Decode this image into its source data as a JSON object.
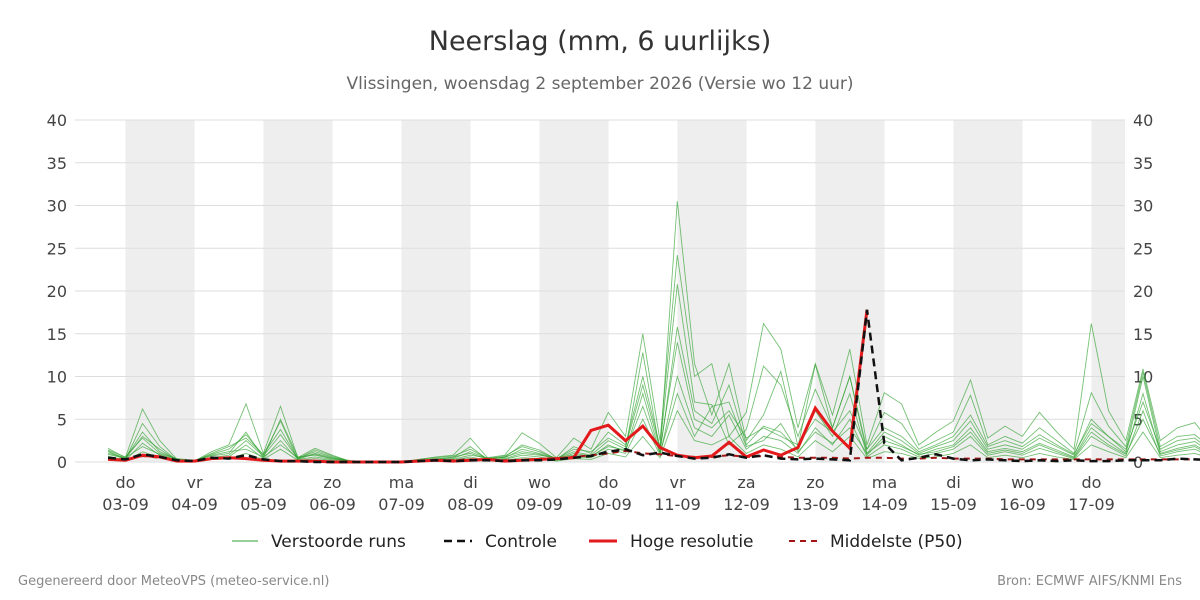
{
  "title": "Neerslag (mm, 6 uurlijks)",
  "subtitle": "Vlissingen, woensdag  2 september 2026 (Versie wo 12 uur)",
  "footer_left": "Gegenereerd door MeteoVPS (meteo-service.nl)",
  "footer_right": "Bron: ECMWF AIFS/KNMI Ens",
  "colors": {
    "ensemble": "#2ca02c",
    "control": "#111111",
    "high_res": "#e31a1c",
    "median": "#a31515",
    "weekend_band": "#eeeeee",
    "grid": "#dddddd"
  },
  "chart_data": {
    "type": "line",
    "x_unit": "6-hour steps from 2026-09-02 18:00",
    "x_labels": [
      {
        "day": "do",
        "date": "03-09"
      },
      {
        "day": "vr",
        "date": "04-09"
      },
      {
        "day": "za",
        "date": "05-09"
      },
      {
        "day": "zo",
        "date": "06-09"
      },
      {
        "day": "ma",
        "date": "07-09"
      },
      {
        "day": "di",
        "date": "08-09"
      },
      {
        "day": "wo",
        "date": "09-09"
      },
      {
        "day": "do",
        "date": "10-09"
      },
      {
        "day": "vr",
        "date": "11-09"
      },
      {
        "day": "za",
        "date": "12-09"
      },
      {
        "day": "zo",
        "date": "13-09"
      },
      {
        "day": "ma",
        "date": "14-09"
      },
      {
        "day": "di",
        "date": "15-09"
      },
      {
        "day": "wo",
        "date": "16-09"
      },
      {
        "day": "do",
        "date": "17-09"
      }
    ],
    "yticks": [
      0,
      5,
      10,
      15,
      20,
      25,
      30,
      35,
      40
    ],
    "ylim": [
      0,
      40
    ],
    "grid": true,
    "legend_position": "bottom",
    "legend": [
      {
        "key": "ensemble",
        "label": "Verstoorde runs",
        "style": "thin"
      },
      {
        "key": "control",
        "label": "Controle",
        "style": "dashed"
      },
      {
        "key": "high_res",
        "label": "Hoge resolutie",
        "style": "solid"
      },
      {
        "key": "median",
        "label": "Middelste (P50)",
        "style": "dashed"
      }
    ],
    "high_res": {
      "name": "Hoge resolutie",
      "values": [
        0.3,
        0.2,
        0.8,
        0.6,
        0.1,
        0.1,
        0.4,
        0.5,
        0.4,
        0.2,
        0.1,
        0.1,
        0.1,
        0,
        0,
        0,
        0,
        0,
        0.1,
        0.2,
        0.1,
        0.2,
        0.3,
        0.1,
        0.2,
        0.3,
        0.4,
        0.5,
        3.7,
        4.3,
        2.5,
        4.2,
        1.7,
        0.8,
        0.5,
        0.7,
        2.3,
        0.6,
        1.4,
        0.8,
        1.7,
        6.3,
        3.6,
        1.6,
        17.8
      ]
    },
    "control": {
      "name": "Controle",
      "values": [
        0.5,
        0.3,
        0.9,
        0.6,
        0.2,
        0.1,
        0.5,
        0.4,
        0.8,
        0.3,
        0.1,
        0.1,
        0,
        0,
        0,
        0,
        0,
        0,
        0.1,
        0.2,
        0.1,
        0.2,
        0.2,
        0.1,
        0.2,
        0.2,
        0.3,
        0.5,
        0.7,
        1.2,
        1.5,
        0.8,
        1.1,
        0.7,
        0.4,
        0.5,
        0.9,
        0.5,
        0.8,
        0.4,
        0.3,
        0.4,
        0.3,
        0.2,
        17.8,
        2.2,
        0.2,
        0.5,
        0.9,
        0.4,
        0.2,
        0.3,
        0.2,
        0.1,
        0.2,
        0.1,
        0.2,
        0.1,
        0.1,
        0.2,
        0.2,
        0.2,
        0.4,
        0.3,
        0.2,
        0.3,
        0.9
      ]
    },
    "median": {
      "name": "Middelste (P50)",
      "values": [
        0.4,
        0.3,
        0.7,
        0.5,
        0.2,
        0.1,
        0.4,
        0.5,
        0.4,
        0.2,
        0.1,
        0.1,
        0,
        0,
        0,
        0,
        0,
        0,
        0.1,
        0.2,
        0.2,
        0.3,
        0.3,
        0.2,
        0.2,
        0.3,
        0.4,
        0.6,
        0.8,
        1.0,
        1.3,
        1.0,
        0.9,
        0.7,
        0.6,
        0.6,
        0.8,
        0.6,
        0.7,
        0.6,
        0.5,
        0.5,
        0.5,
        0.4,
        0.5,
        0.5,
        0.4,
        0.4,
        0.5,
        0.4,
        0.4,
        0.4,
        0.3,
        0.3,
        0.3,
        0.3,
        0.3,
        0.3,
        0.3,
        0.3,
        0.3,
        0.3,
        0.3,
        0.3,
        0.3,
        0.3,
        0.3
      ]
    },
    "ensemble": [
      [
        1.6,
        0.5,
        6.2,
        2.5,
        0.3,
        0.1,
        1.2,
        2.0,
        6.8,
        1.0,
        6.5,
        0.5,
        1.6,
        0.8,
        0.1,
        0,
        0,
        0,
        0.3,
        0.6,
        0.8,
        2.8,
        0.5,
        0.8,
        3.4,
        2.2,
        0.5,
        2.8,
        1.5,
        5.8,
        3.0,
        15.0,
        2.5,
        24.2,
        10.0,
        11.5,
        3.0,
        5.8,
        16.2,
        13.2,
        4.0,
        11.5,
        5.5,
        13.2,
        2.0,
        8.1,
        6.8,
        2.0,
        3.5,
        4.8,
        9.6,
        2.8,
        4.2,
        3.0,
        5.8,
        3.5,
        1.5,
        16.2,
        6.0,
        2.5,
        10.9,
        2.5,
        4.0,
        4.6,
        2.0,
        6.8,
        2.5,
        8.9,
        2.0,
        0.8,
        14.6,
        2.5,
        1.5,
        8.6,
        3.5,
        1.0,
        6.0,
        7.0,
        8.2,
        2.0,
        1.2,
        17.0,
        3.5,
        7.8,
        8.8
      ],
      [
        1.2,
        0.3,
        4.5,
        1.8,
        0.2,
        0.1,
        0.9,
        1.5,
        3.2,
        0.8,
        4.8,
        0.3,
        1.0,
        0.5,
        0.1,
        0,
        0,
        0,
        0.2,
        0.4,
        0.5,
        1.8,
        0.3,
        0.6,
        2.0,
        1.4,
        0.3,
        1.8,
        1.0,
        3.5,
        2.0,
        10.0,
        1.8,
        20.8,
        7.0,
        6.7,
        2.0,
        3.8,
        11.2,
        9.0,
        3.0,
        8.5,
        4.0,
        10.0,
        1.5,
        5.8,
        4.5,
        1.5,
        2.5,
        3.5,
        7.8,
        2.0,
        3.0,
        2.2,
        4.0,
        2.5,
        1.0,
        8.1,
        4.2,
        1.8,
        10.5,
        1.8,
        3.0,
        3.2,
        1.5,
        4.0,
        1.8,
        6.0,
        1.5,
        0.6,
        6.6,
        1.8,
        1.0,
        5.5,
        2.5,
        0.8,
        4.0,
        7.2,
        5.5,
        1.5,
        0.9,
        7.8,
        2.5,
        7.0,
        5.6
      ],
      [
        0.9,
        0.4,
        3.5,
        1.2,
        0.3,
        0.2,
        0.7,
        1.0,
        3.5,
        0.5,
        5.0,
        0.6,
        0.8,
        0.4,
        0.2,
        0,
        0,
        0,
        0.2,
        0.3,
        0.4,
        1.2,
        0.4,
        0.5,
        1.5,
        1.0,
        0.4,
        1.2,
        0.8,
        2.5,
        1.5,
        12.8,
        1.2,
        30.5,
        11.5,
        5.5,
        11.5,
        2.5,
        5.5,
        10.6,
        1.8,
        11.4,
        4.0,
        10.0,
        1.0,
        3.5,
        2.5,
        1.0,
        1.8,
        2.5,
        4.8,
        1.5,
        2.0,
        1.5,
        2.8,
        1.8,
        0.8,
        5.0,
        3.0,
        1.2,
        10.0,
        1.2,
        2.0,
        2.4,
        1.0,
        3.0,
        1.2,
        4.0,
        1.0,
        0.5,
        4.8,
        1.2,
        0.8,
        3.5,
        1.8,
        0.6,
        2.8,
        2.5,
        3.5,
        1.0,
        0.7,
        4.5,
        1.8,
        2.0,
        3.5
      ],
      [
        1.4,
        0.6,
        2.8,
        1.0,
        0.4,
        0.2,
        0.5,
        0.8,
        2.5,
        0.7,
        3.2,
        0.4,
        1.2,
        0.6,
        0.1,
        0,
        0,
        0,
        0.1,
        0.2,
        0.3,
        0.8,
        0.5,
        0.4,
        1.0,
        0.8,
        0.5,
        0.8,
        0.6,
        2.0,
        1.2,
        8.0,
        1.0,
        15.8,
        6.0,
        4.5,
        9.0,
        2.0,
        4.2,
        3.5,
        1.4,
        6.0,
        3.0,
        8.0,
        0.8,
        3.0,
        2.0,
        0.8,
        1.5,
        2.0,
        4.0,
        1.2,
        1.6,
        1.2,
        2.2,
        1.4,
        0.6,
        4.0,
        2.4,
        1.0,
        8.0,
        1.0,
        1.6,
        2.0,
        0.8,
        2.4,
        1.0,
        3.2,
        0.8,
        0.4,
        3.8,
        1.0,
        0.6,
        2.8,
        1.4,
        0.5,
        2.2,
        2.0,
        2.8,
        0.8,
        0.6,
        3.6,
        1.4,
        1.6,
        2.8
      ],
      [
        0.7,
        0.2,
        2.2,
        0.8,
        0.2,
        0.1,
        0.4,
        0.6,
        2.0,
        0.4,
        2.5,
        0.3,
        0.6,
        0.3,
        0.1,
        0,
        0,
        0,
        0.1,
        0.2,
        0.2,
        0.6,
        0.2,
        0.3,
        0.8,
        0.6,
        0.2,
        0.6,
        0.5,
        1.5,
        1.0,
        5.0,
        0.8,
        10.0,
        4.0,
        3.0,
        5.5,
        1.5,
        3.0,
        2.5,
        1.0,
        4.0,
        2.0,
        5.0,
        0.6,
        2.0,
        1.5,
        0.6,
        1.0,
        1.5,
        3.0,
        0.8,
        1.2,
        0.8,
        1.6,
        1.0,
        0.4,
        3.0,
        1.8,
        0.7,
        6.0,
        0.7,
        1.2,
        1.5,
        0.6,
        1.8,
        0.7,
        2.4,
        0.6,
        0.3,
        2.8,
        0.7,
        0.4,
        2.0,
        1.0,
        0.4,
        1.6,
        1.5,
        2.0,
        0.6,
        0.4,
        2.6,
        1.0,
        1.2,
        2.0
      ],
      [
        1.0,
        0.5,
        1.8,
        0.9,
        0.3,
        0.2,
        0.8,
        1.2,
        1.5,
        0.6,
        2.0,
        0.5,
        0.9,
        0.4,
        0.1,
        0,
        0,
        0,
        0.2,
        0.3,
        0.6,
        1.0,
        0.3,
        0.6,
        1.2,
        0.9,
        0.3,
        1.0,
        0.7,
        1.8,
        1.4,
        6.5,
        1.0,
        8.0,
        3.0,
        6.5,
        7.0,
        1.8,
        2.5,
        4.5,
        1.2,
        3.5,
        2.2,
        4.0,
        1.0,
        2.5,
        1.8,
        0.9,
        1.2,
        1.8,
        3.5,
        1.0,
        1.4,
        1.0,
        2.0,
        1.2,
        0.5,
        3.5,
        2.0,
        0.9,
        5.0,
        0.9,
        1.4,
        1.8,
        0.7,
        2.0,
        0.9,
        2.8,
        0.7,
        0.4,
        3.2,
        0.9,
        0.5,
        2.4,
        1.2,
        0.5,
        1.8,
        1.7,
        2.4,
        0.7,
        0.5,
        3.0,
        1.2,
        1.4,
        2.4
      ],
      [
        0.5,
        0.1,
        1.2,
        0.5,
        0.1,
        0,
        0.3,
        0.4,
        1.0,
        0.3,
        1.5,
        0.2,
        0.4,
        0.2,
        0,
        0,
        0,
        0,
        0.1,
        0.1,
        0.2,
        0.4,
        0.1,
        0.2,
        0.5,
        0.4,
        0.1,
        0.4,
        0.3,
        1.0,
        0.6,
        3.0,
        0.5,
        6.0,
        2.5,
        2.0,
        3.0,
        1.0,
        2.0,
        1.5,
        0.6,
        2.5,
        1.2,
        3.0,
        0.4,
        1.2,
        1.0,
        0.4,
        0.6,
        1.0,
        2.0,
        0.5,
        0.8,
        0.5,
        1.0,
        0.6,
        0.3,
        2.0,
        1.2,
        0.5,
        3.5,
        0.5,
        0.8,
        1.0,
        0.4,
        1.2,
        0.5,
        1.6,
        0.4,
        0.2,
        1.8,
        0.5,
        0.3,
        1.3,
        0.7,
        0.3,
        1.0,
        1.0,
        1.3,
        0.4,
        0.3,
        1.7,
        0.7,
        0.8,
        1.3
      ],
      [
        1.3,
        0.4,
        3.0,
        1.5,
        0.2,
        0.1,
        1.0,
        1.8,
        2.8,
        0.9,
        3.8,
        0.4,
        1.4,
        0.7,
        0.1,
        0,
        0,
        0,
        0.3,
        0.5,
        0.7,
        1.5,
        0.4,
        0.7,
        1.8,
        1.2,
        0.4,
        1.5,
        1.2,
        2.8,
        1.8,
        9.0,
        1.5,
        14.0,
        5.0,
        4.0,
        6.0,
        2.8,
        4.0,
        3.0,
        2.0,
        5.0,
        3.5,
        6.0,
        1.5,
        4.0,
        3.0,
        1.2,
        2.0,
        3.0,
        5.5,
        1.8,
        2.5,
        1.8,
        3.2,
        2.0,
        0.9,
        4.5,
        3.0,
        1.5,
        7.0,
        1.5,
        2.5,
        2.8,
        1.2,
        3.5,
        1.5,
        4.5,
        1.2,
        0.6,
        4.0,
        1.5,
        0.9,
        3.0,
        2.0,
        0.7,
        2.5,
        2.2,
        3.0,
        1.2,
        0.8,
        4.0,
        2.0,
        2.2,
        3.0
      ]
    ]
  }
}
